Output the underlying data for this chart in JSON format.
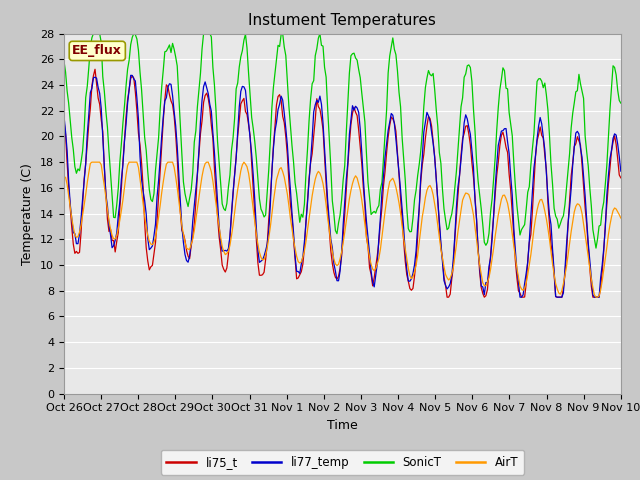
{
  "title": "Instument Temperatures",
  "xlabel": "Time",
  "ylabel": "Temperature (C)",
  "ylim": [
    0,
    28
  ],
  "yticks": [
    0,
    2,
    4,
    6,
    8,
    10,
    12,
    14,
    16,
    18,
    20,
    22,
    24,
    26,
    28
  ],
  "xtick_labels": [
    "Oct 26",
    "Oct 27",
    "Oct 28",
    "Oct 29",
    "Oct 30",
    "Oct 31",
    "Nov 1",
    "Nov 2",
    "Nov 3",
    "Nov 4",
    "Nov 5",
    "Nov 6",
    "Nov 7",
    "Nov 8",
    "Nov 9",
    "Nov 10"
  ],
  "line_colors": {
    "li75_t": "#cc0000",
    "li77_temp": "#0000cc",
    "SonicT": "#00cc00",
    "AirT": "#ff9900"
  },
  "annotation_text": "EE_flux",
  "annotation_color": "#800000",
  "annotation_bg": "#ffffcc",
  "title_fontsize": 11,
  "axis_fontsize": 9,
  "tick_fontsize": 8
}
